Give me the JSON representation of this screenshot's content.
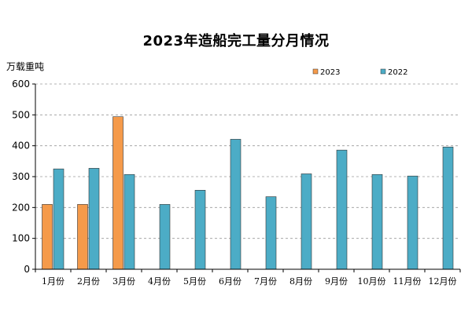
{
  "chart_data": {
    "type": "bar",
    "title": "2023年造船完工量分月情况",
    "ylabel": "万载重吨",
    "xlabel": "",
    "ylim": [
      0,
      600
    ],
    "yticks": [
      0,
      100,
      200,
      300,
      400,
      500,
      600
    ],
    "grid": "horizontal dashed",
    "legend": "top-right",
    "categories": [
      "1月份",
      "2月份",
      "3月份",
      "4月份",
      "5月份",
      "6月份",
      "7月份",
      "8月份",
      "9月份",
      "10月份",
      "11月份",
      "12月份"
    ],
    "series": [
      {
        "name": "2023",
        "color": "#f59a4a",
        "values": [
          210,
          210,
          494,
          null,
          null,
          null,
          null,
          null,
          null,
          null,
          null,
          null
        ]
      },
      {
        "name": "2022",
        "color": "#4cacc6",
        "values": [
          325,
          327,
          307,
          210,
          256,
          421,
          235,
          309,
          386,
          307,
          302,
          396
        ]
      }
    ]
  }
}
